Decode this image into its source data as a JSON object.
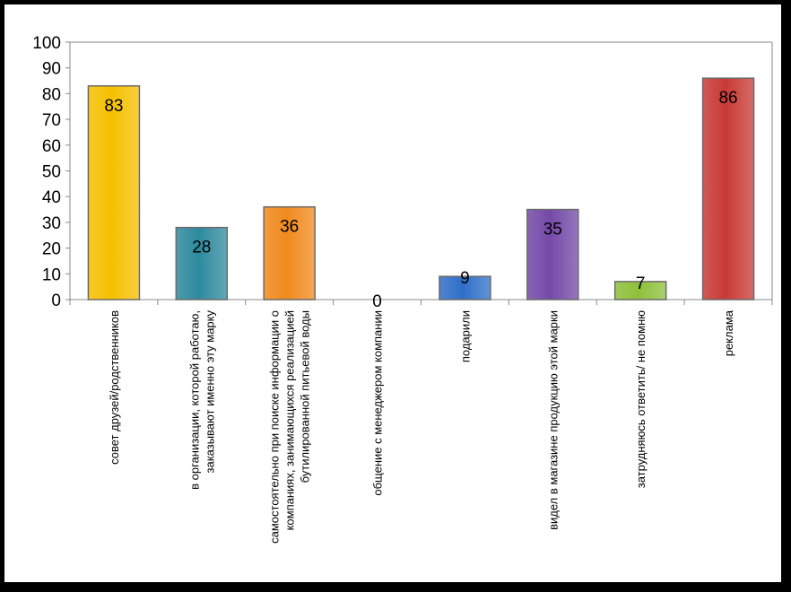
{
  "chart_data": {
    "type": "bar",
    "title": "",
    "xlabel": "",
    "ylabel": "",
    "ylim": [
      0,
      100
    ],
    "yticks": [
      0,
      10,
      20,
      30,
      40,
      50,
      60,
      70,
      80,
      90,
      100
    ],
    "grid": false,
    "legend": "none",
    "categories": [
      [
        "совет друзей/родственников"
      ],
      [
        "в организации, которой работаю,",
        "заказывают именно эту марку"
      ],
      [
        "самостоятельно при поиске информации о",
        "компаниях, занимающихся реализацией",
        "бутилированной питьевой воды"
      ],
      [
        "общение с менеджером компании"
      ],
      [
        "подарили"
      ],
      [
        "видел в магазине продукцию этой марки"
      ],
      [
        "затрудняюсь ответить/ не помню"
      ],
      [
        "реклама"
      ]
    ],
    "values": [
      83,
      28,
      36,
      0,
      9,
      35,
      7,
      86
    ],
    "colors": [
      "#F5C000",
      "#2E8A9E",
      "#F08A1E",
      "#888888",
      "#2F6FC8",
      "#7449A8",
      "#8DC03A",
      "#C83A36"
    ]
  }
}
